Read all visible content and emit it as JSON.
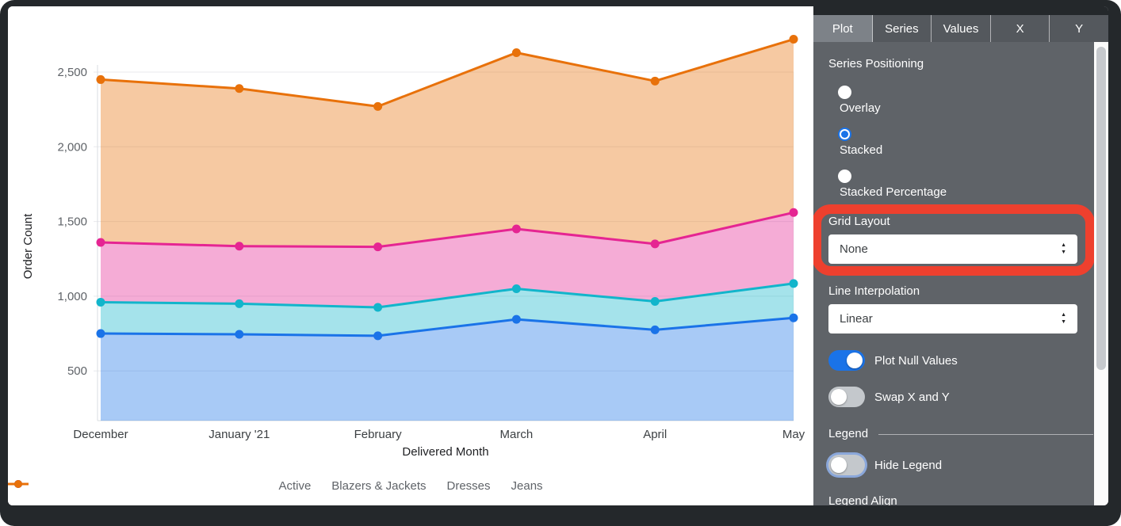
{
  "chart_data": {
    "type": "area",
    "stacking": "stacked",
    "title": "",
    "xlabel": "Delivered Month",
    "ylabel": "Order Count",
    "categories": [
      "December",
      "January '21",
      "February",
      "March",
      "April",
      "May"
    ],
    "series": [
      {
        "name": "Active",
        "color": "#1a73e8",
        "stacked_top_values": [
          750,
          745,
          735,
          845,
          775,
          855
        ]
      },
      {
        "name": "Blazers & Jackets",
        "color": "#12b5cb",
        "stacked_top_values": [
          960,
          950,
          925,
          1050,
          965,
          1085
        ]
      },
      {
        "name": "Dresses",
        "color": "#e52592",
        "stacked_top_values": [
          1360,
          1335,
          1330,
          1450,
          1350,
          1560
        ]
      },
      {
        "name": "Jeans",
        "color": "#e8710a",
        "stacked_top_values": [
          2450,
          2390,
          2270,
          2630,
          2440,
          2720
        ]
      }
    ],
    "yticks": [
      500,
      1000,
      1500,
      2000,
      2500
    ],
    "ytick_labels": [
      "500",
      "1,000",
      "1,500",
      "2,000",
      "2,500"
    ],
    "ylim": [
      165,
      2910
    ],
    "grid": "horizontal-only",
    "legend_position": "bottom"
  },
  "panel": {
    "tabs": [
      {
        "label": "Plot",
        "selected": true
      },
      {
        "label": "Series",
        "selected": false
      },
      {
        "label": "Values",
        "selected": false
      },
      {
        "label": "X",
        "selected": false
      },
      {
        "label": "Y",
        "selected": false
      }
    ],
    "series_positioning": {
      "label": "Series Positioning",
      "options": [
        {
          "label": "Overlay",
          "selected": false
        },
        {
          "label": "Stacked",
          "selected": true
        },
        {
          "label": "Stacked Percentage",
          "selected": false
        }
      ]
    },
    "grid_layout": {
      "label": "Grid Layout",
      "value": "None",
      "highlighted": true
    },
    "line_interpolation": {
      "label": "Line Interpolation",
      "value": "Linear"
    },
    "toggles": [
      {
        "label": "Plot Null Values",
        "on": true
      },
      {
        "label": "Swap X and Y",
        "on": false
      }
    ],
    "legend_section": {
      "header": "Legend",
      "hide_legend": {
        "label": "Hide Legend",
        "on": false
      },
      "legend_align_label": "Legend Align"
    },
    "icons": {
      "arrow_up": "▲",
      "arrow_down": "▼"
    },
    "colors": {
      "accent": "#1a73e8",
      "panel_bg": "#5f6368",
      "highlight_annotation": "#ee402e"
    }
  }
}
